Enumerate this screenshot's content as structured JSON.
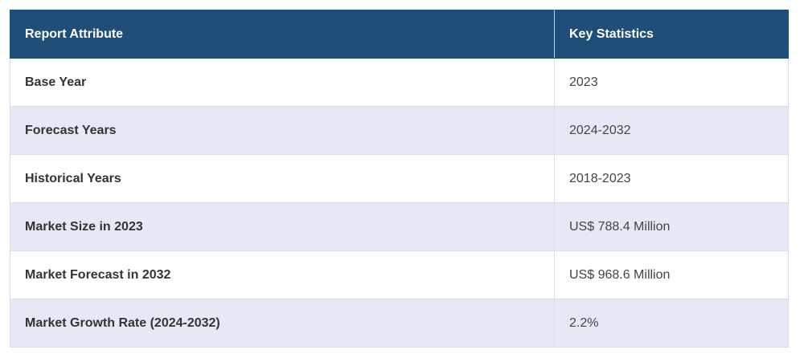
{
  "table": {
    "header": [
      "Report Attribute",
      "Key Statistics"
    ],
    "rows": [
      [
        "Base Year",
        "2023"
      ],
      [
        "Forecast Years",
        "2024-2032"
      ],
      [
        "Historical Years",
        "2018-2023"
      ],
      [
        "Market Size in 2023",
        "US$ 788.4 Million"
      ],
      [
        "Market Forecast in 2032",
        "US$ 968.6 Million"
      ],
      [
        "Market Growth Rate (2024-2032)",
        "2.2%"
      ]
    ]
  }
}
